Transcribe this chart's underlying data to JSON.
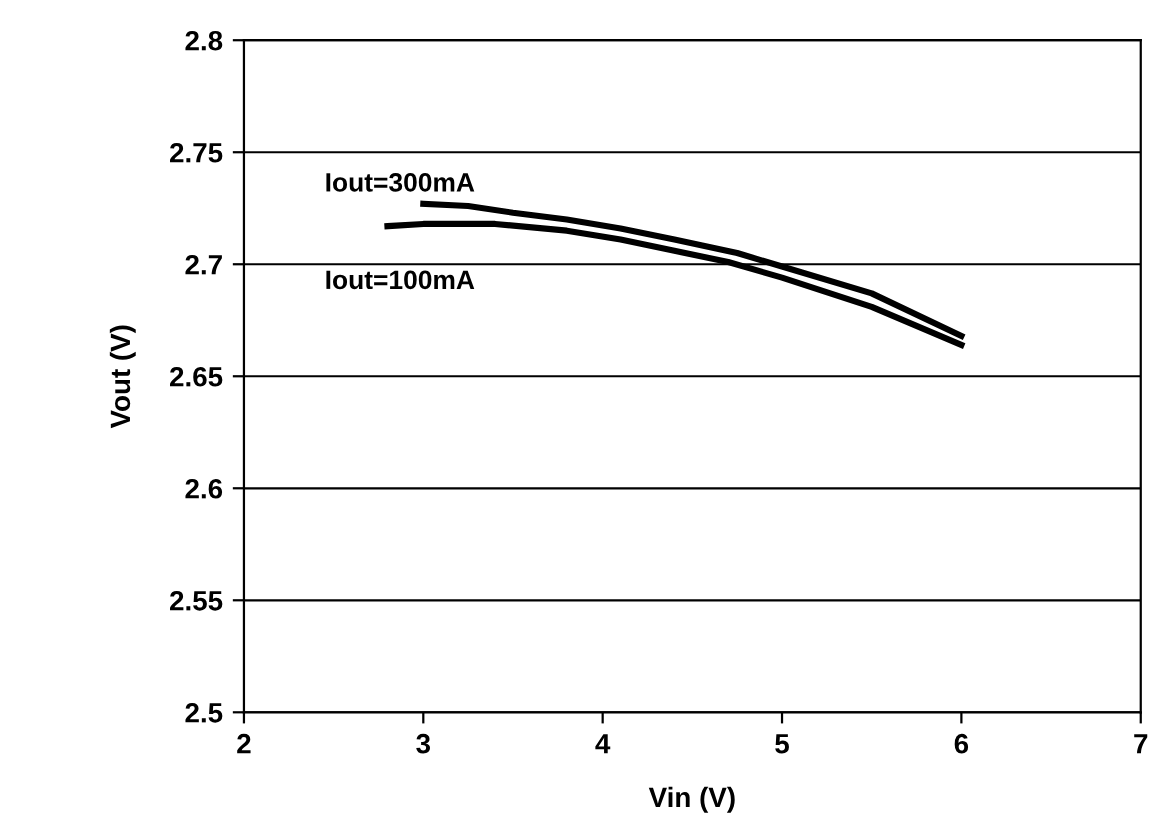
{
  "chart_data": {
    "type": "line",
    "xlabel": "Vin (V)",
    "ylabel": "Vout (V)",
    "xlim": [
      2,
      7
    ],
    "xticks": [
      2,
      3,
      4,
      5,
      6,
      7
    ],
    "ylim": [
      2.5,
      2.8
    ],
    "yticks": [
      2.5,
      2.55,
      2.6,
      2.65,
      2.7,
      2.75,
      2.8
    ],
    "grid": "y",
    "legend": false,
    "marker": "none",
    "line_style": "solid",
    "series": [
      {
        "name": "Iout=300mA",
        "color": "#000000",
        "x": [
          3,
          3.25,
          3.5,
          3.8,
          4.1,
          4.4,
          4.75,
          5,
          5.5,
          6
        ],
        "values": [
          2.727,
          2.726,
          2.723,
          2.72,
          2.716,
          2.711,
          2.705,
          2.699,
          2.687,
          2.668
        ]
      },
      {
        "name": "Iout=100mA",
        "color": "#000000",
        "x": [
          2.8,
          3,
          3.4,
          3.8,
          4.1,
          4.4,
          4.7,
          5,
          5.5,
          6
        ],
        "values": [
          2.717,
          2.718,
          2.718,
          2.715,
          2.711,
          2.706,
          2.701,
          2.694,
          2.681,
          2.664
        ]
      }
    ]
  }
}
